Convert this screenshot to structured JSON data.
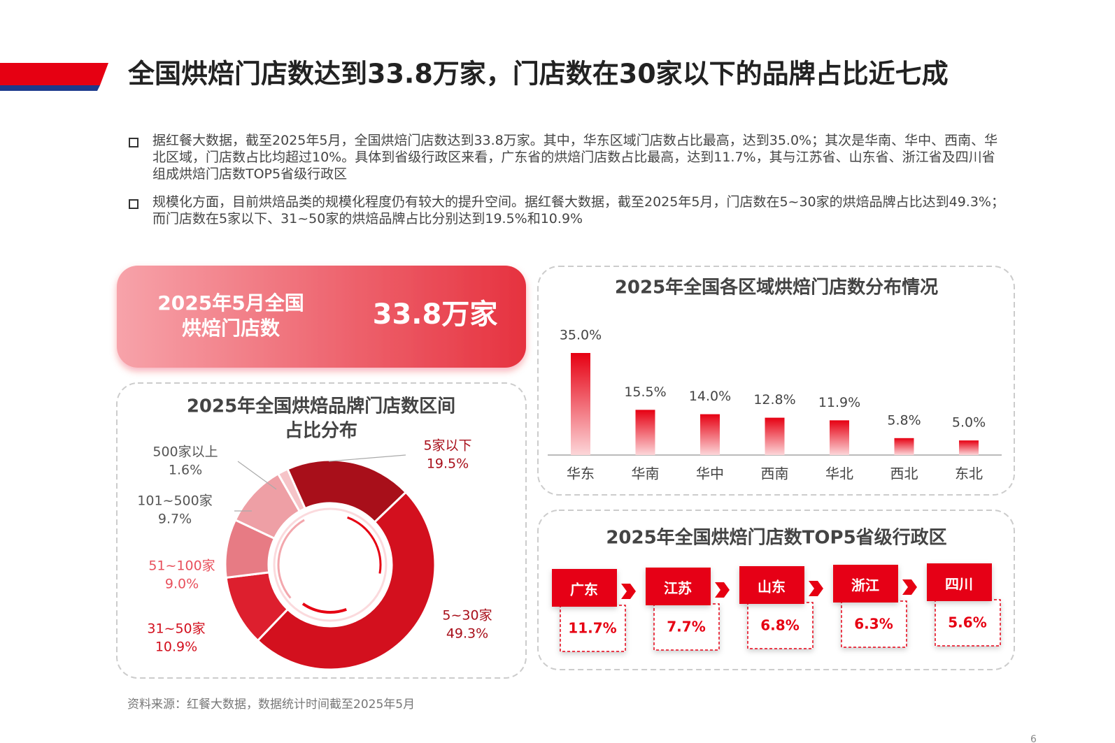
{
  "title": "全国烘焙门店数达到33.8万家，门店数在30家以下的品牌占比近七成",
  "bullets": [
    "据红餐大数据，截至2025年5月，全国烘焙门店数达到33.8万家。其中，华东区域门店数占比最高，达到35.0%；其次是华南、华中、西南、华北区域，门店数占比均超过10%。具体到省级行政区来看，广东省的烘焙门店数占比最高，达到11.7%，其与江苏省、山东省、浙江省及四川省组成烘焙门店数TOP5省级行政区",
    "规模化方面，目前烘焙品类的规模化程度仍有较大的提升空间。据红餐大数据，截至2025年5月，门店数在5~30家的烘焙品牌占比达到49.3%；而门店数在5家以下、31~50家的烘焙品牌占比分别达到19.5%和10.9%"
  ],
  "kpi": {
    "label": [
      "2025年5月全国",
      "烘焙门店数"
    ],
    "value": "33.8万家"
  },
  "chart_data": [
    {
      "type": "pie",
      "title": [
        "2025年全国烘焙品牌门店数区间",
        "占比分布"
      ],
      "categories": [
        "5家以下",
        "5~30家",
        "31~50家",
        "51~100家",
        "101~500家",
        "500家以上"
      ],
      "values": [
        19.5,
        49.3,
        10.9,
        9.0,
        9.7,
        1.6
      ],
      "value_labels": [
        "19.5%",
        "49.3%",
        "10.9%",
        "9.0%",
        "9.7%",
        "1.6%"
      ],
      "colors": [
        "#a80f1a",
        "#d3101e",
        "#dd1f2e",
        "#e77b84",
        "#ee9fa5",
        "#f6c4c8"
      ],
      "label_colors": [
        "#a80f1a",
        "#a80f1a",
        "#d3101e",
        "#e8505c",
        "#555555",
        "#555555"
      ]
    },
    {
      "type": "bar",
      "title": "2025年全国各区域烘焙门店数分布情况",
      "categories": [
        "华东",
        "华南",
        "华中",
        "西南",
        "华北",
        "西北",
        "东北"
      ],
      "values": [
        35.0,
        15.5,
        14.0,
        12.8,
        11.9,
        5.8,
        5.0
      ],
      "value_labels": [
        "35.0%",
        "15.5%",
        "14.0%",
        "12.8%",
        "11.9%",
        "5.8%",
        "5.0%"
      ],
      "color": "#e60012"
    },
    {
      "type": "rank",
      "title": "2025年全国烘焙门店数TOP5省级行政区",
      "categories": [
        "广东",
        "江苏",
        "山东",
        "浙江",
        "四川"
      ],
      "values": [
        11.7,
        7.7,
        6.8,
        6.3,
        5.6
      ],
      "value_labels": [
        "11.7%",
        "7.7%",
        "6.8%",
        "6.3%",
        "5.6%"
      ],
      "color": "#e60012"
    }
  ],
  "source": "资料来源：红餐大数据，数据统计时间截至2025年5月",
  "page_number": "6"
}
